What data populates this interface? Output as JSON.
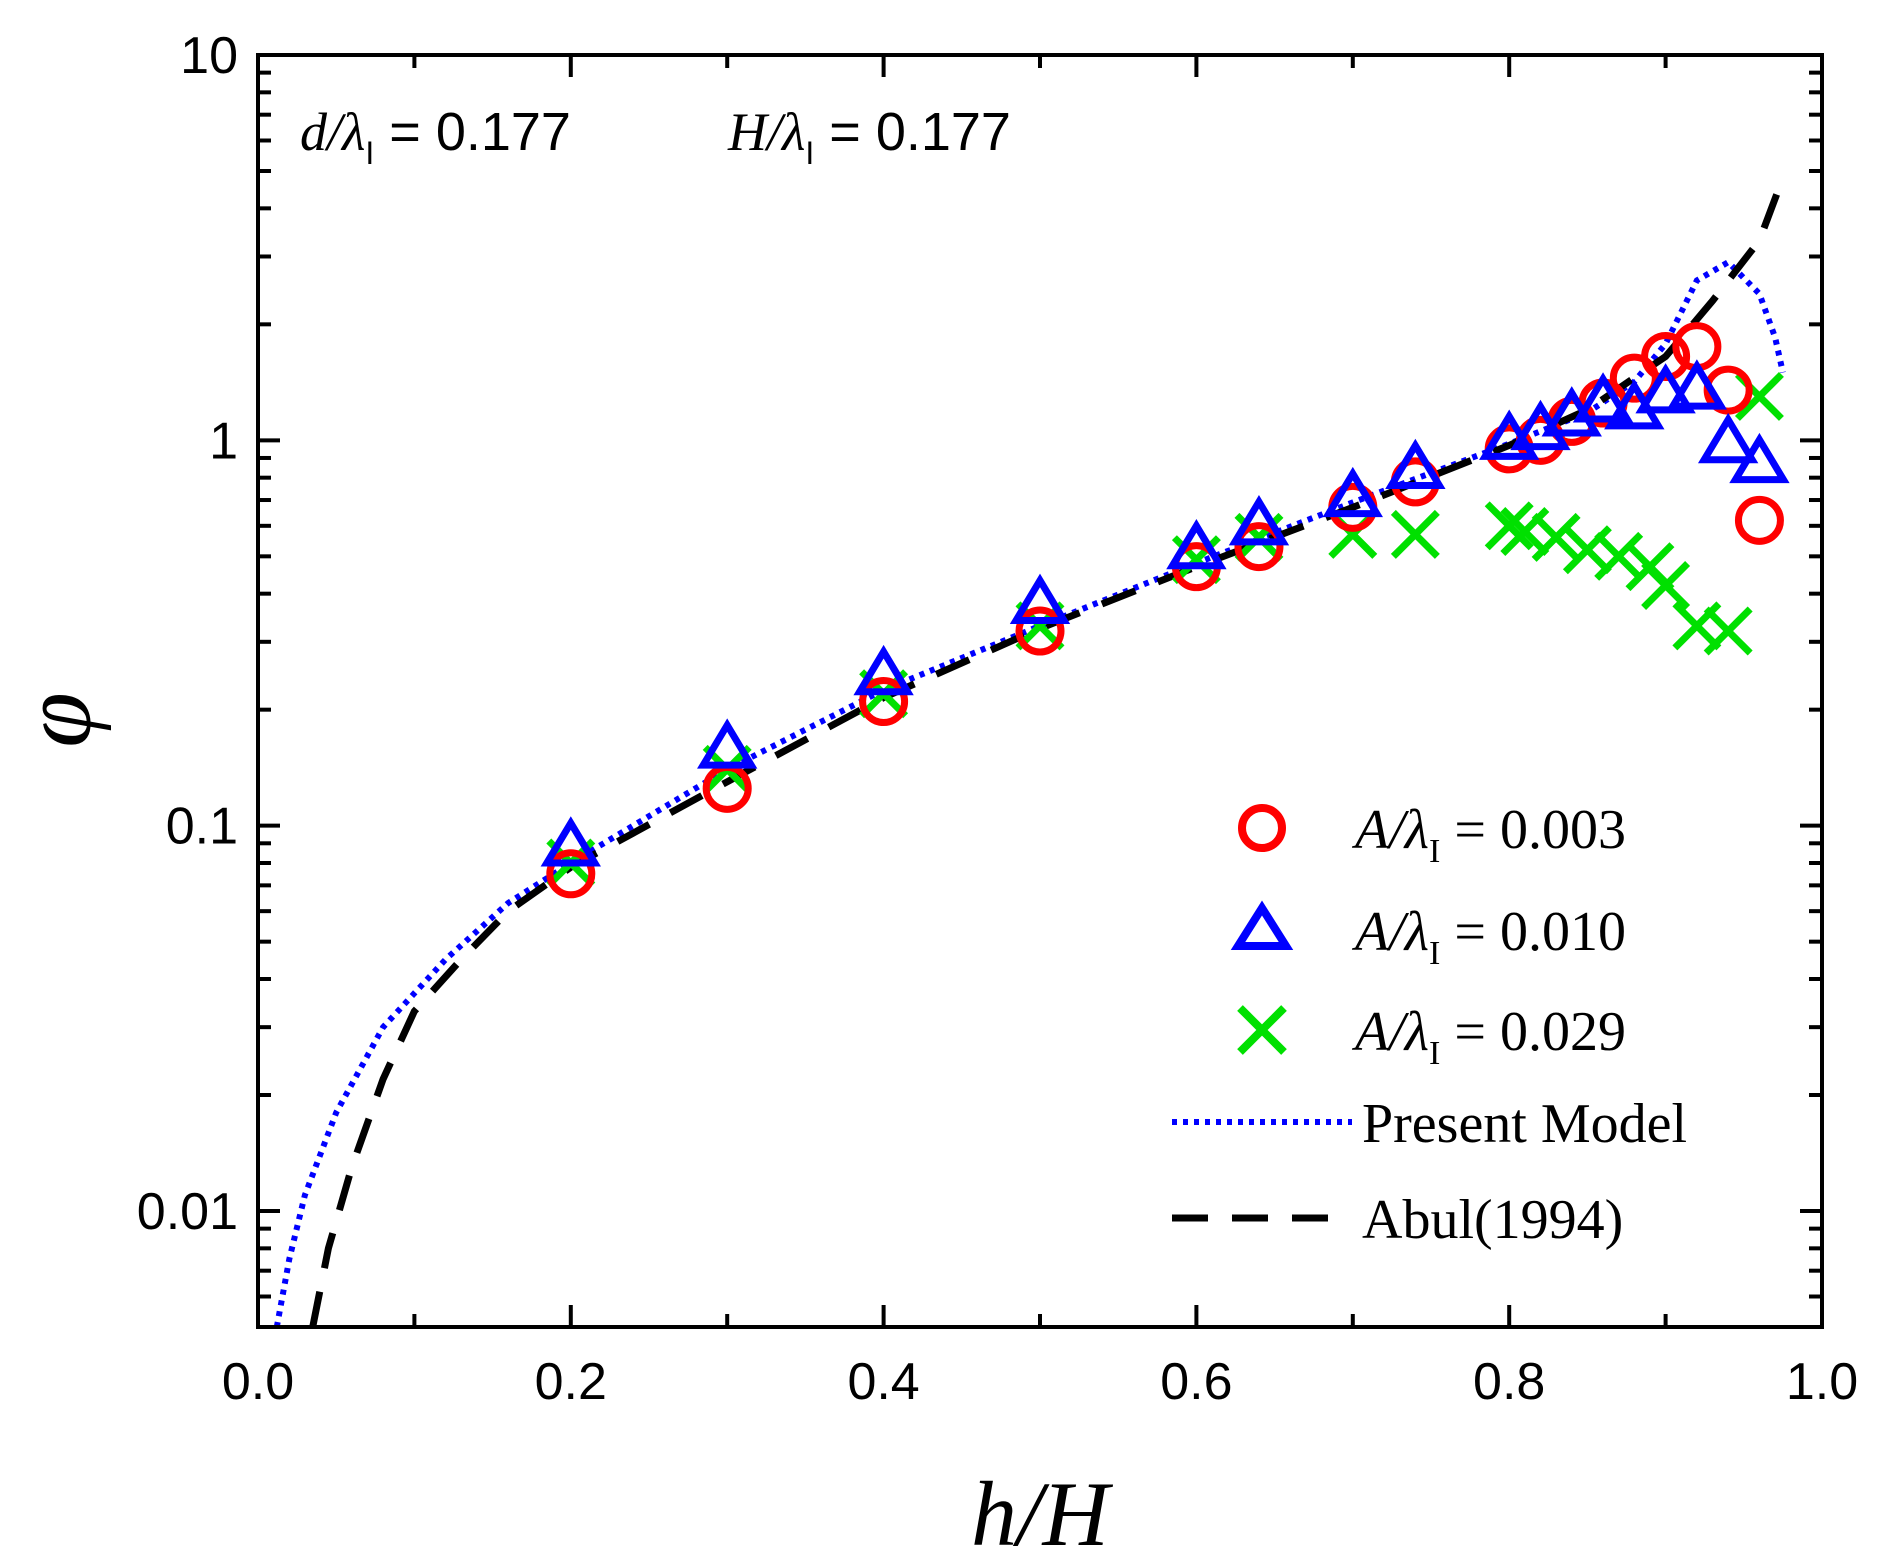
{
  "chart_data": {
    "type": "scatter",
    "title": "",
    "xlabel": "h/H",
    "ylabel": "φ",
    "xlim": [
      0.0,
      1.0
    ],
    "ylim": [
      0.005,
      10
    ],
    "yscale": "log",
    "x_ticks": [
      {
        "value": 0.0,
        "label": "0.0"
      },
      {
        "value": 0.2,
        "label": "0.2"
      },
      {
        "value": 0.4,
        "label": "0.4"
      },
      {
        "value": 0.6,
        "label": "0.6"
      },
      {
        "value": 0.8,
        "label": "0.8"
      },
      {
        "value": 1.0,
        "label": "1.0"
      }
    ],
    "y_ticks": [
      {
        "value": 0.01,
        "label": "0.01"
      },
      {
        "value": 0.1,
        "label": "0.1"
      },
      {
        "value": 1,
        "label": "1"
      },
      {
        "value": 10,
        "label": "10"
      }
    ],
    "annotation": {
      "d_label": "d/λ",
      "d_sub": "I",
      "d_value": " = 0.177",
      "h_label": "H/λ",
      "h_sub": "I",
      "h_value": " = 0.177"
    },
    "series": [
      {
        "name": "A/λI = 0.003",
        "legend_prefix": "A/λ",
        "legend_sub": "I",
        "legend_value": " = 0.003",
        "marker": "circle",
        "color": "#ff0000",
        "points": [
          [
            0.2,
            0.075
          ],
          [
            0.3,
            0.125
          ],
          [
            0.4,
            0.21
          ],
          [
            0.5,
            0.32
          ],
          [
            0.6,
            0.47
          ],
          [
            0.64,
            0.53
          ],
          [
            0.7,
            0.67
          ],
          [
            0.74,
            0.78
          ],
          [
            0.8,
            0.95
          ],
          [
            0.82,
            1.0
          ],
          [
            0.84,
            1.12
          ],
          [
            0.86,
            1.25
          ],
          [
            0.88,
            1.45
          ],
          [
            0.9,
            1.65
          ],
          [
            0.92,
            1.75
          ],
          [
            0.94,
            1.35
          ],
          [
            0.96,
            0.62
          ]
        ]
      },
      {
        "name": "A/λI = 0.010",
        "legend_prefix": "A/λ",
        "legend_sub": "I",
        "legend_value": " = 0.010",
        "marker": "triangle",
        "color": "#0000ff",
        "points": [
          [
            0.2,
            0.088
          ],
          [
            0.3,
            0.158
          ],
          [
            0.4,
            0.245
          ],
          [
            0.5,
            0.375
          ],
          [
            0.6,
            0.52
          ],
          [
            0.64,
            0.6
          ],
          [
            0.7,
            0.71
          ],
          [
            0.74,
            0.84
          ],
          [
            0.8,
            1.0
          ],
          [
            0.82,
            1.06
          ],
          [
            0.84,
            1.15
          ],
          [
            0.86,
            1.25
          ],
          [
            0.88,
            1.2
          ],
          [
            0.9,
            1.32
          ],
          [
            0.92,
            1.35
          ],
          [
            0.94,
            0.98
          ],
          [
            0.96,
            0.87
          ]
        ]
      },
      {
        "name": "A/λI = 0.029",
        "legend_prefix": "A/λ",
        "legend_sub": "I",
        "legend_value": " = 0.029",
        "marker": "cross",
        "color": "#00e000",
        "points": [
          [
            0.2,
            0.08
          ],
          [
            0.3,
            0.14
          ],
          [
            0.4,
            0.22
          ],
          [
            0.5,
            0.33
          ],
          [
            0.6,
            0.49
          ],
          [
            0.64,
            0.56
          ],
          [
            0.7,
            0.57
          ],
          [
            0.74,
            0.57
          ],
          [
            0.8,
            0.6
          ],
          [
            0.81,
            0.58
          ],
          [
            0.83,
            0.56
          ],
          [
            0.85,
            0.52
          ],
          [
            0.87,
            0.5
          ],
          [
            0.89,
            0.47
          ],
          [
            0.9,
            0.42
          ],
          [
            0.92,
            0.33
          ],
          [
            0.94,
            0.32
          ],
          [
            0.96,
            1.3
          ]
        ]
      },
      {
        "name": "Present Model",
        "marker": "line",
        "style": "dotted",
        "color": "#0000ff",
        "points": [
          [
            0.012,
            0.005
          ],
          [
            0.02,
            0.0075
          ],
          [
            0.03,
            0.011
          ],
          [
            0.05,
            0.018
          ],
          [
            0.08,
            0.03
          ],
          [
            0.12,
            0.045
          ],
          [
            0.16,
            0.063
          ],
          [
            0.2,
            0.08
          ],
          [
            0.3,
            0.14
          ],
          [
            0.4,
            0.225
          ],
          [
            0.5,
            0.33
          ],
          [
            0.6,
            0.48
          ],
          [
            0.7,
            0.69
          ],
          [
            0.8,
            0.98
          ],
          [
            0.85,
            1.18
          ],
          [
            0.88,
            1.42
          ],
          [
            0.9,
            1.78
          ],
          [
            0.92,
            2.6
          ],
          [
            0.94,
            2.9
          ],
          [
            0.96,
            2.4
          ],
          [
            0.97,
            1.85
          ],
          [
            0.975,
            1.5
          ]
        ]
      },
      {
        "name": "Abul(1994)",
        "marker": "line",
        "style": "dashed",
        "color": "#000000",
        "points": [
          [
            0.035,
            0.005
          ],
          [
            0.045,
            0.008
          ],
          [
            0.06,
            0.013
          ],
          [
            0.08,
            0.022
          ],
          [
            0.1,
            0.033
          ],
          [
            0.13,
            0.045
          ],
          [
            0.16,
            0.06
          ],
          [
            0.2,
            0.078
          ],
          [
            0.3,
            0.13
          ],
          [
            0.4,
            0.215
          ],
          [
            0.5,
            0.325
          ],
          [
            0.6,
            0.47
          ],
          [
            0.7,
            0.67
          ],
          [
            0.8,
            0.97
          ],
          [
            0.85,
            1.2
          ],
          [
            0.9,
            1.65
          ],
          [
            0.93,
            2.3
          ],
          [
            0.96,
            3.3
          ],
          [
            0.975,
            4.8
          ]
        ]
      }
    ],
    "legend": {
      "position": "bottom-right",
      "order": [
        0,
        1,
        2,
        3,
        4
      ]
    }
  }
}
